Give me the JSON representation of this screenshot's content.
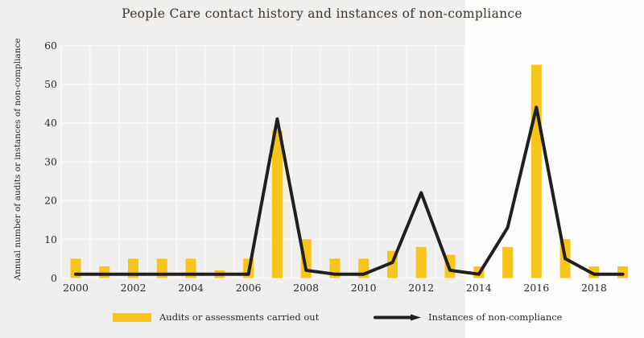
{
  "colors": {
    "background": "#f0efed",
    "highlight": "#fdfdfc",
    "gridline": "#fafaf8",
    "bar": "#f7c41c",
    "line": "#211f1e",
    "text": "#2b2826",
    "title_text": "#393430"
  },
  "chart_data": {
    "type": "bar+line",
    "title": "People Care contact history and instances of non-compliance",
    "ylabel": "Annual number of audits or instances of non-compliance",
    "xlabel": "",
    "categories": [
      2000,
      2001,
      2002,
      2003,
      2004,
      2005,
      2006,
      2007,
      2008,
      2009,
      2010,
      2011,
      2012,
      2013,
      2014,
      2015,
      2016,
      2017,
      2018,
      2019
    ],
    "series": [
      {
        "name": "Audits or assessments carried out",
        "type": "bar",
        "color": "#f7c41c",
        "values": [
          5,
          3,
          5,
          5,
          5,
          2,
          5,
          38,
          10,
          5,
          5,
          7,
          8,
          6,
          3,
          8,
          55,
          10,
          3,
          3
        ]
      },
      {
        "name": "Instances of non-compliance",
        "type": "line",
        "color": "#211f1e",
        "values": [
          1,
          1,
          1,
          1,
          1,
          1,
          1,
          41,
          2,
          1,
          1,
          4,
          22,
          2,
          1,
          13,
          44,
          5,
          1,
          1
        ]
      }
    ],
    "ylim": [
      0,
      60
    ],
    "yticks": [
      0,
      10,
      20,
      30,
      40,
      50,
      60
    ],
    "xtick_labels": [
      "2000",
      "2002",
      "2004",
      "2006",
      "2008",
      "2010",
      "2012",
      "2014",
      "2016",
      "2018"
    ],
    "grid": true,
    "legend_position": "bottom",
    "highlight_band": {
      "start_category": 2014,
      "end_category": 2019
    }
  }
}
